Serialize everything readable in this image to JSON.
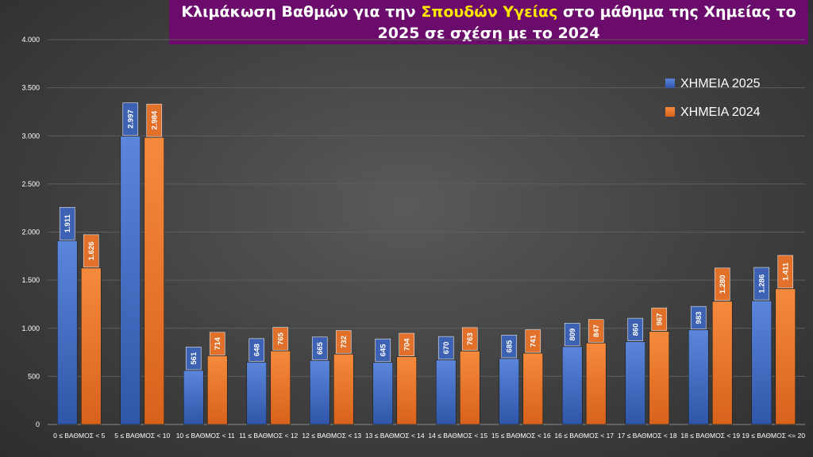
{
  "title": {
    "part1": "Κλιμάκωση Βαθμών για την ",
    "highlight": "Σπουδών Υγείας",
    "part2": " στο μάθημα της  Χημείας το 2025 σε σχέση με το 2024"
  },
  "colors": {
    "series_2025": "#4a72c8",
    "series_2025_label": "#3d62b3",
    "series_2024": "#ed7d31",
    "series_2024_label": "#e0702a",
    "title_bg": "#6b0b6b",
    "title_highlight": "#ffe600"
  },
  "chart_data": {
    "type": "bar",
    "title": "Κλιμάκωση Βαθμών για την Σπουδών Υγείας στο μάθημα της  Χημείας το 2025 σε σχέση με το 2024",
    "xlabel": "",
    "ylabel": "",
    "ylim": [
      0,
      4000
    ],
    "yticks": [
      0,
      500,
      1000,
      1500,
      2000,
      2500,
      3000,
      3500,
      4000
    ],
    "ytick_labels": [
      "0",
      "500",
      "1.000",
      "1.500",
      "2.000",
      "2.500",
      "3.000",
      "3.500",
      "4.000"
    ],
    "grid": true,
    "legend_position": "top-right",
    "categories": [
      "0 ≤ ΒΑΘΜΟΣ < 5",
      "5 ≤ ΒΑΘΜΟΣ < 10",
      "10 ≤ ΒΑΘΜΟΣ < 11",
      "11 ≤ ΒΑΘΜΟΣ < 12",
      "12 ≤ ΒΑΘΜΟΣ < 13",
      "13 ≤ ΒΑΘΜΟΣ < 14",
      "14 ≤ ΒΑΘΜΟΣ < 15",
      "15 ≤ ΒΑΘΜΟΣ < 16",
      "16 ≤ ΒΑΘΜΟΣ < 17",
      "17 ≤ ΒΑΘΜΟΣ < 18",
      "18 ≤ ΒΑΘΜΟΣ < 19",
      "19 ≤ ΒΑΘΜΟΣ <= 20"
    ],
    "series": [
      {
        "name": "ΧΗΜΕΙΑ 2025",
        "values": [
          1911,
          2997,
          561,
          648,
          665,
          645,
          670,
          685,
          809,
          860,
          983,
          1286
        ],
        "labels": [
          "1.911",
          "2.997",
          "561",
          "648",
          "665",
          "645",
          "670",
          "685",
          "809",
          "860",
          "983",
          "1.286"
        ]
      },
      {
        "name": "ΧΗΜΕΙΑ 2024",
        "values": [
          1626,
          2984,
          714,
          765,
          732,
          704,
          763,
          741,
          847,
          967,
          1280,
          1411
        ],
        "labels": [
          "1.626",
          "2.984",
          "714",
          "765",
          "732",
          "704",
          "763",
          "741",
          "847",
          "967",
          "1.280",
          "1.411"
        ]
      }
    ]
  }
}
